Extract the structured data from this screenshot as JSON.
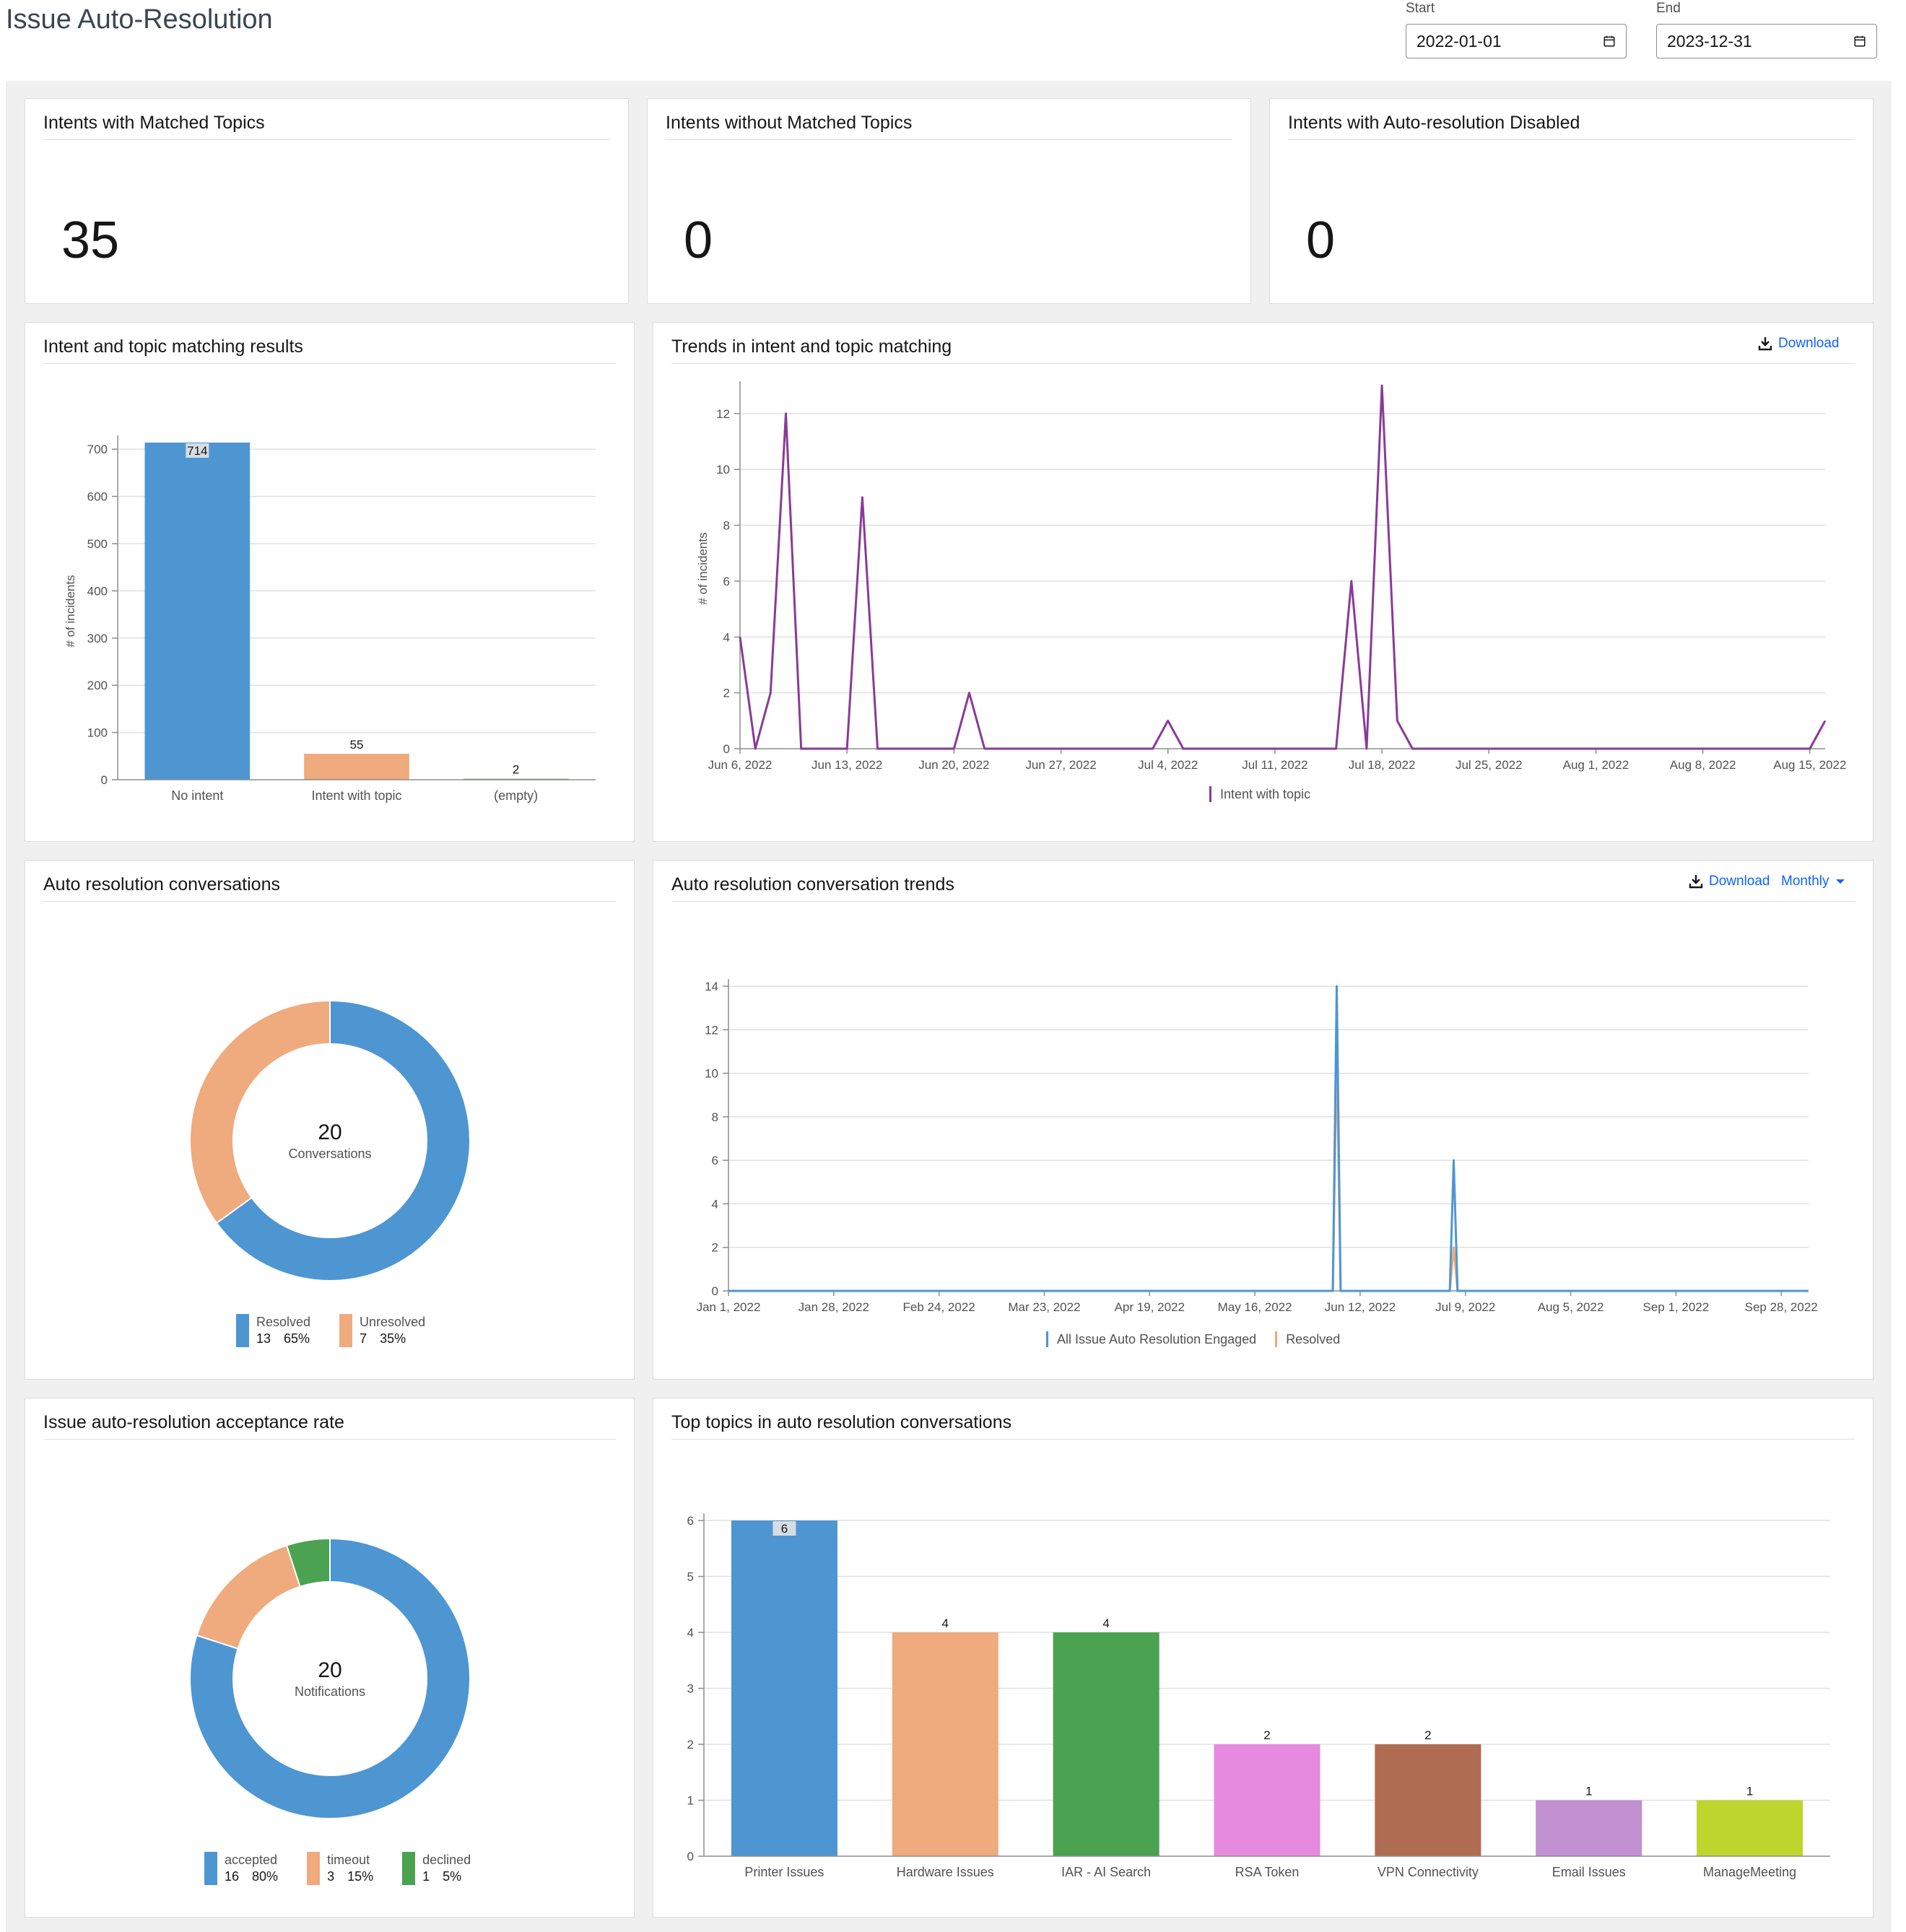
{
  "page": {
    "title": "Issue Auto-Resolution"
  },
  "date_range": {
    "start_label": "Start",
    "start_value": "2022-01-01",
    "end_label": "End",
    "end_value": "2023-12-31"
  },
  "kpis": [
    {
      "title": "Intents with Matched Topics",
      "value": "35"
    },
    {
      "title": "Intents without Matched Topics",
      "value": "0"
    },
    {
      "title": "Intents with Auto-resolution Disabled",
      "value": "0"
    }
  ],
  "actions": {
    "download_label": "Download",
    "period_label": "Monthly"
  },
  "colors": {
    "blue": "#4e96d2",
    "orange": "#efaa7e",
    "green": "#4ba250",
    "pink": "#e68ae0",
    "brown": "#b06c52",
    "lavender": "#c090d0",
    "lime": "#bcd62e",
    "purple": "#8a3a97"
  },
  "charts": {
    "intent_topic_results": {
      "title": "Intent and topic matching results",
      "chart_data": {
        "type": "bar",
        "categories": [
          "No intent",
          "Intent with topic",
          "(empty)"
        ],
        "values": [
          714,
          55,
          2
        ],
        "colors": [
          "#4e96d2",
          "#efaa7e",
          "#4ba250"
        ],
        "ylabel": "# of incidents",
        "ylim": [
          0,
          700
        ],
        "yticks": [
          0,
          100,
          200,
          300,
          400,
          500,
          600,
          700
        ],
        "grid": true
      }
    },
    "trends_matching": {
      "title": "Trends in intent and topic matching",
      "chart_data": {
        "type": "line",
        "ylabel": "# of incidents",
        "ylim": [
          0,
          12
        ],
        "yticks": [
          0,
          2,
          4,
          6,
          8,
          10,
          12
        ],
        "xticks": [
          "Jun 6, 2022",
          "Jun 13, 2022",
          "Jun 20, 2022",
          "Jun 27, 2022",
          "Jul 4, 2022",
          "Jul 11, 2022",
          "Jul 18, 2022",
          "Jul 25, 2022",
          "Aug 1, 2022",
          "Aug 8, 2022",
          "Aug 15, 2022"
        ],
        "x": [
          "2022-06-06",
          "2022-06-07",
          "2022-06-08",
          "2022-06-09",
          "2022-06-10",
          "2022-06-13",
          "2022-06-14",
          "2022-06-15",
          "2022-06-20",
          "2022-06-21",
          "2022-06-22",
          "2022-07-03",
          "2022-07-04",
          "2022-07-05",
          "2022-07-15",
          "2022-07-16",
          "2022-07-17",
          "2022-07-18",
          "2022-07-19",
          "2022-07-20",
          "2022-08-15",
          "2022-08-16"
        ],
        "series": [
          {
            "name": "Intent with topic",
            "color": "#8a3a97",
            "values": [
              4,
              0,
              2,
              12,
              0,
              0,
              9,
              0,
              0,
              2,
              0,
              0,
              1,
              0,
              0,
              6,
              0,
              13,
              1,
              0,
              0,
              1
            ]
          }
        ],
        "legend": "bottom",
        "grid": true
      }
    },
    "auto_resolution_conversations": {
      "title": "Auto resolution conversations",
      "chart_data": {
        "type": "pie",
        "center_value": "20",
        "center_label": "Conversations",
        "slices": [
          {
            "name": "Resolved",
            "value": 13,
            "percent": "65%",
            "color": "#4e96d2"
          },
          {
            "name": "Unresolved",
            "value": 7,
            "percent": "35%",
            "color": "#efaa7e"
          }
        ]
      }
    },
    "conversation_trends": {
      "title": "Auto resolution conversation trends",
      "chart_data": {
        "type": "line",
        "ylim": [
          0,
          14
        ],
        "yticks": [
          0,
          2,
          4,
          6,
          8,
          10,
          12,
          14
        ],
        "xticks": [
          "Jan 1, 2022",
          "Jan 28, 2022",
          "Feb 24, 2022",
          "Mar 23, 2022",
          "Apr 19, 2022",
          "May 16, 2022",
          "Jun 12, 2022",
          "Jul 9, 2022",
          "Aug 5, 2022",
          "Sep 1, 2022",
          "Sep 28, 2022"
        ],
        "x": [
          "2022-01-01",
          "2022-06-05",
          "2022-06-06",
          "2022-06-07",
          "2022-07-05",
          "2022-07-06",
          "2022-07-07",
          "2022-10-05"
        ],
        "series": [
          {
            "name": "All Issue Auto Resolution Engaged",
            "color": "#4e96d2",
            "values": [
              0,
              0,
              14,
              0,
              0,
              6,
              0,
              0
            ]
          },
          {
            "name": "Resolved",
            "color": "#efaa7e",
            "values": [
              0,
              0,
              11,
              0,
              0,
              2,
              0,
              0
            ]
          }
        ],
        "legend": "bottom",
        "grid": true
      }
    },
    "acceptance_rate": {
      "title": "Issue auto-resolution acceptance rate",
      "chart_data": {
        "type": "pie",
        "center_value": "20",
        "center_label": "Notifications",
        "slices": [
          {
            "name": "accepted",
            "value": 16,
            "percent": "80%",
            "color": "#4e96d2"
          },
          {
            "name": "timeout",
            "value": 3,
            "percent": "15%",
            "color": "#efaa7e"
          },
          {
            "name": "declined",
            "value": 1,
            "percent": "5%",
            "color": "#4ba250"
          }
        ]
      }
    },
    "top_topics": {
      "title": "Top topics in auto resolution conversations",
      "chart_data": {
        "type": "bar",
        "categories": [
          "Printer Issues",
          "Hardware Issues",
          "IAR - AI Search",
          "RSA Token",
          "VPN Connectivity",
          "Email Issues",
          "ManageMeeting"
        ],
        "values": [
          6,
          4,
          4,
          2,
          2,
          1,
          1
        ],
        "colors": [
          "#4e96d2",
          "#efaa7e",
          "#4ba250",
          "#e68ae0",
          "#b06c52",
          "#c090d0",
          "#bcd62e"
        ],
        "ylim": [
          0,
          6
        ],
        "yticks": [
          0,
          1,
          2,
          3,
          4,
          5,
          6
        ],
        "grid": true
      }
    }
  }
}
